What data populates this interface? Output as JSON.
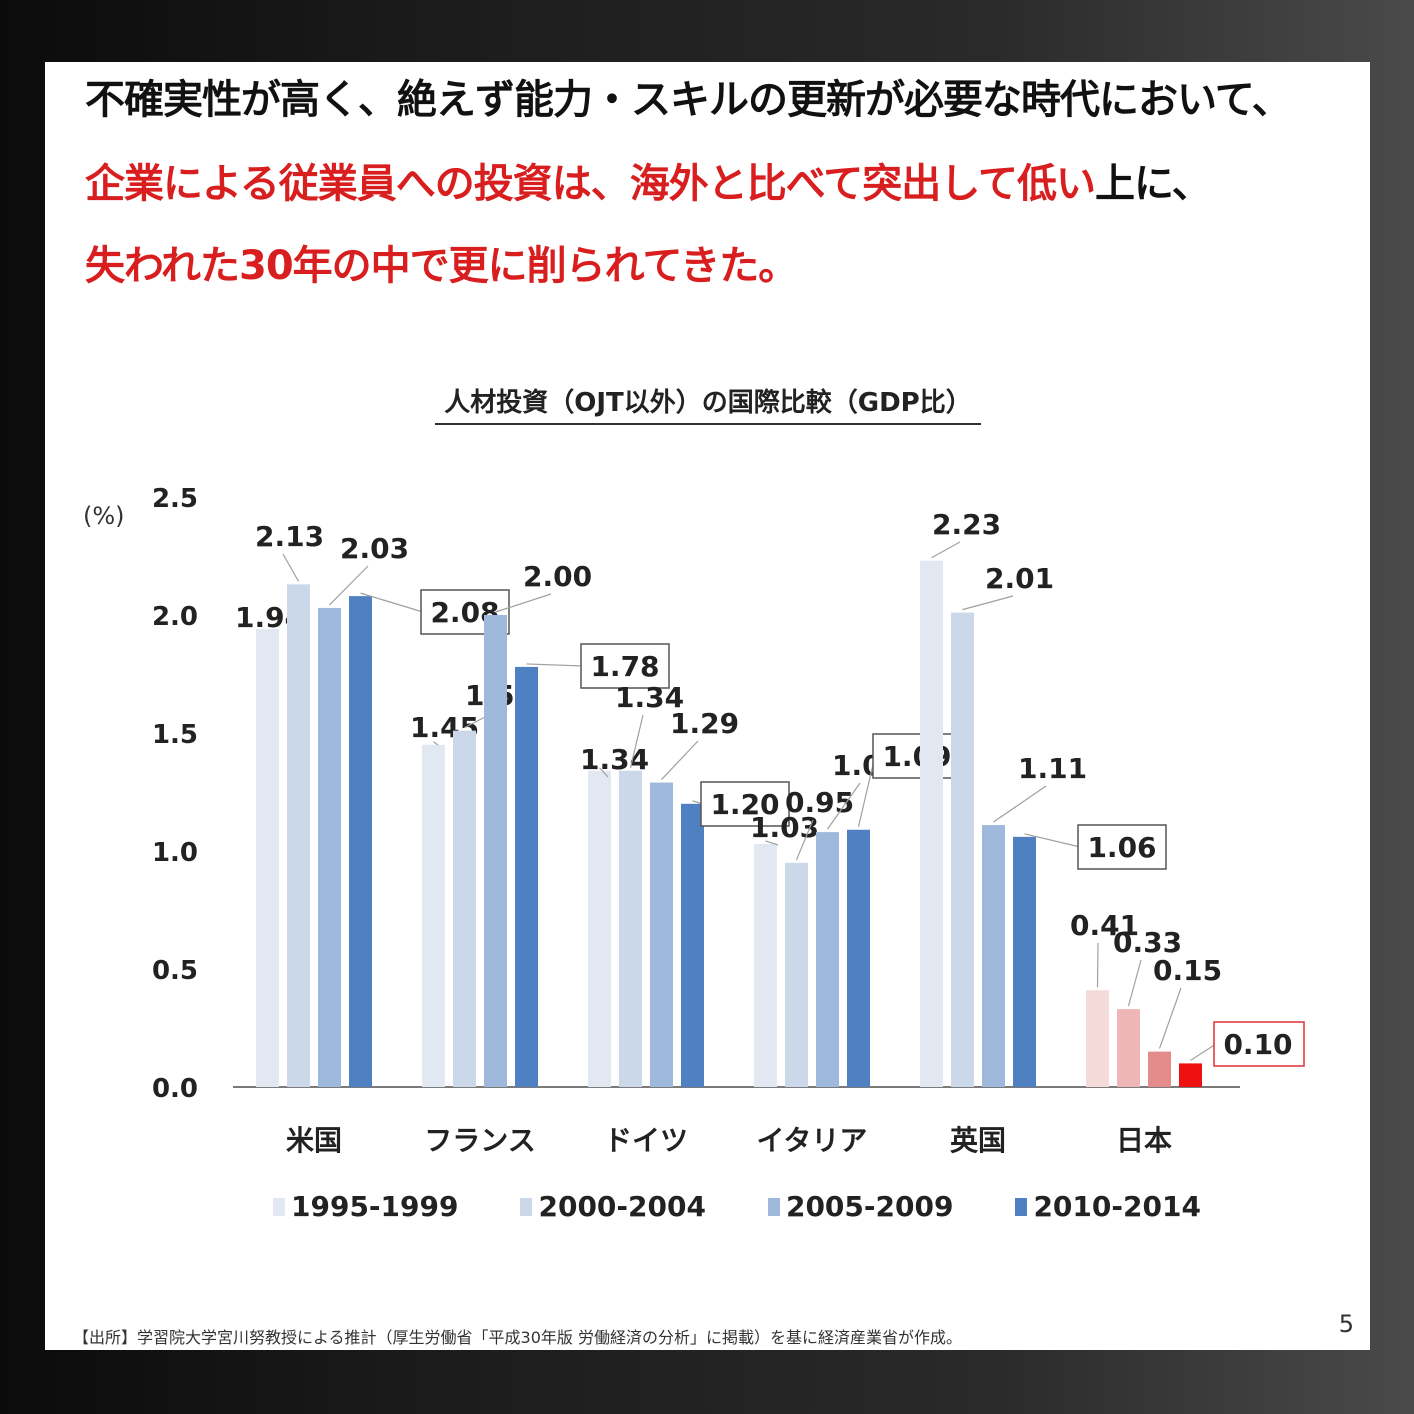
{
  "headline": {
    "line1": "不確実性が高く、絶えず能力・スキルの更新が必要な時代において、",
    "line2_red": "企業による従業員への投資は、海外と比べて突出して低い",
    "line2_tail": "上に、",
    "line3": "失われた30年の中で更に削られてきた。"
  },
  "chart_data": {
    "type": "bar",
    "title": "人材投資（OJT以外）の国際比較（GDP比）",
    "ylabel": "(%)",
    "ylim": [
      0,
      2.5
    ],
    "yticks": [
      "0.0",
      "0.5",
      "1.0",
      "1.5",
      "2.0",
      "2.5"
    ],
    "categories": [
      "米国",
      "フランス",
      "ドイツ",
      "イタリア",
      "英国",
      "日本"
    ],
    "series": [
      {
        "name": "1995-1999",
        "values": [
          1.94,
          1.45,
          1.34,
          1.03,
          2.23,
          0.41
        ],
        "labels": [
          "1.94",
          "1.45",
          "1.34",
          "1.03",
          "2.23",
          "0.41"
        ]
      },
      {
        "name": "2000-2004",
        "values": [
          2.13,
          1.51,
          1.34,
          0.95,
          2.01,
          0.33
        ],
        "labels": [
          "2.13",
          "1.51",
          "1.34",
          "0.95",
          "2.01",
          "0.33"
        ]
      },
      {
        "name": "2005-2009",
        "values": [
          2.03,
          2.0,
          1.29,
          1.08,
          1.11,
          0.15
        ],
        "labels": [
          "2.03",
          "2.00",
          "1.29",
          "1.08",
          "1.11",
          "0.15"
        ]
      },
      {
        "name": "2010-2014",
        "values": [
          2.08,
          1.78,
          1.2,
          1.09,
          1.06,
          0.1
        ],
        "labels": [
          "2.08",
          "1.78",
          "1.20",
          "1.09",
          "1.06",
          "0.10"
        ]
      }
    ],
    "colors": [
      "#e2e8f1",
      "#cbd8ea",
      "#9fb9dc",
      "#4f80c2"
    ],
    "japan_colors": [
      "#f5dada",
      "#eeb6b6",
      "#e48c8c",
      "#ee1111"
    ],
    "grid": false,
    "legend": "bottom"
  },
  "footer": {
    "source": "【出所】学習院大学宮川努教授による推計（厚生労働省「平成30年版 労働経済の分析」に掲載）を基に経済産業省が作成。",
    "page": "5"
  }
}
